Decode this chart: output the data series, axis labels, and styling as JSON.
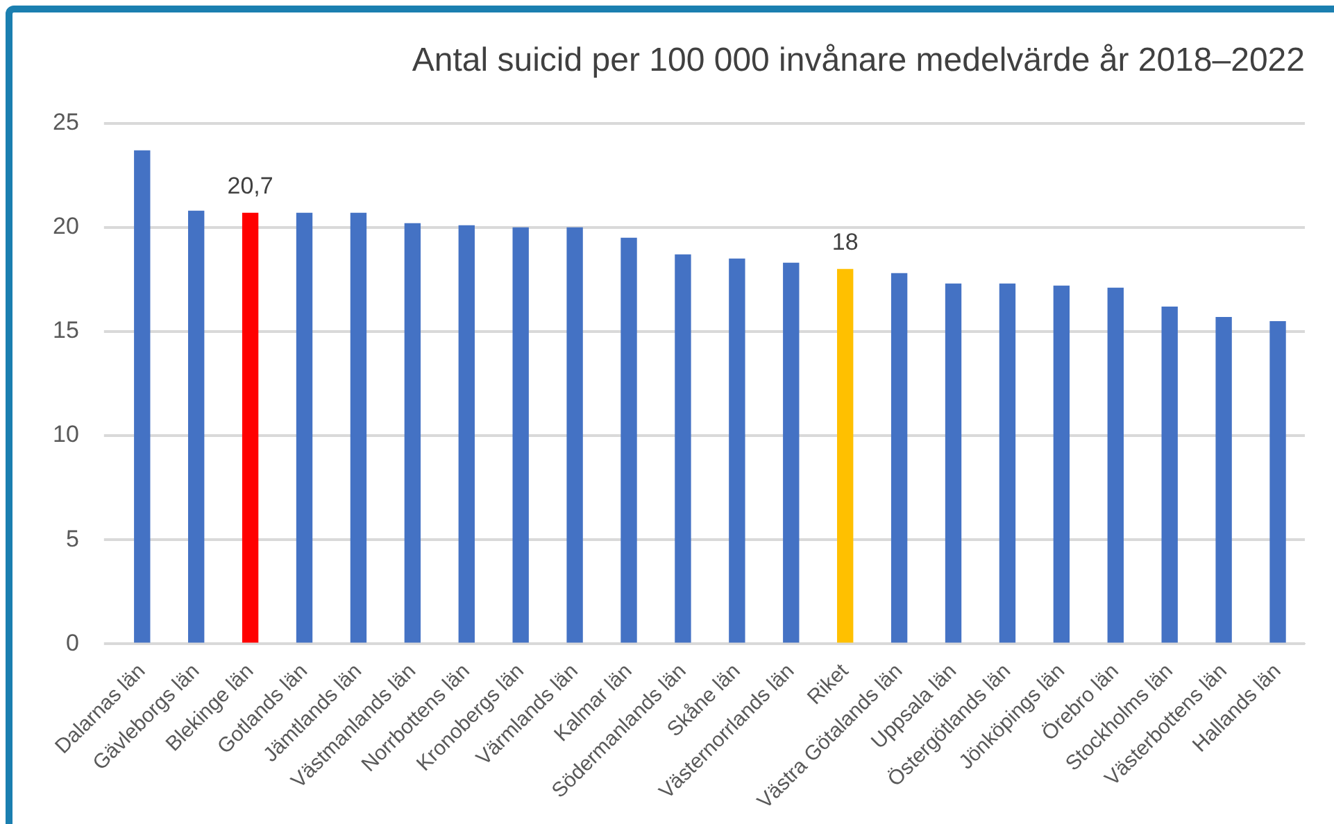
{
  "chart_data": {
    "type": "bar",
    "title": "Antal suicid per 100 000 invånare medelvärde år 2018–2022",
    "categories": [
      "Dalarnas län",
      "Gävleborgs län",
      "Blekinge län",
      "Gotlands län",
      "Jämtlands län",
      "Västmanlands län",
      "Norrbottens län",
      "Kronobergs län",
      "Värmlands län",
      "Kalmar län",
      "Södermanlands län",
      "Skåne län",
      "Västernorrlands län",
      "Riket",
      "Västra Götalands län",
      "Uppsala län",
      "Östergötlands län",
      "Jönköpings län",
      "Örebro län",
      "Stockholms län",
      "Västerbottens län",
      "Hallands län"
    ],
    "values": [
      23.7,
      20.8,
      20.7,
      20.7,
      20.7,
      20.2,
      20.1,
      20.0,
      20.0,
      19.5,
      18.7,
      18.5,
      18.3,
      18,
      17.8,
      17.3,
      17.3,
      17.2,
      17.1,
      16.2,
      15.7,
      15.5
    ],
    "colors": [
      "#4472c4",
      "#4472c4",
      "#ff0000",
      "#4472c4",
      "#4472c4",
      "#4472c4",
      "#4472c4",
      "#4472c4",
      "#4472c4",
      "#4472c4",
      "#4472c4",
      "#4472c4",
      "#4472c4",
      "#ffc000",
      "#4472c4",
      "#4472c4",
      "#4472c4",
      "#4472c4",
      "#4472c4",
      "#4472c4",
      "#4472c4",
      "#4472c4"
    ],
    "value_labels": [
      null,
      null,
      "20,7",
      null,
      null,
      null,
      null,
      null,
      null,
      null,
      null,
      null,
      null,
      "18",
      null,
      null,
      null,
      null,
      null,
      null,
      null,
      null
    ],
    "ylim": [
      0,
      25
    ],
    "yticks": [
      0,
      5,
      10,
      15,
      20,
      25
    ],
    "grid": "y",
    "legend": false
  }
}
